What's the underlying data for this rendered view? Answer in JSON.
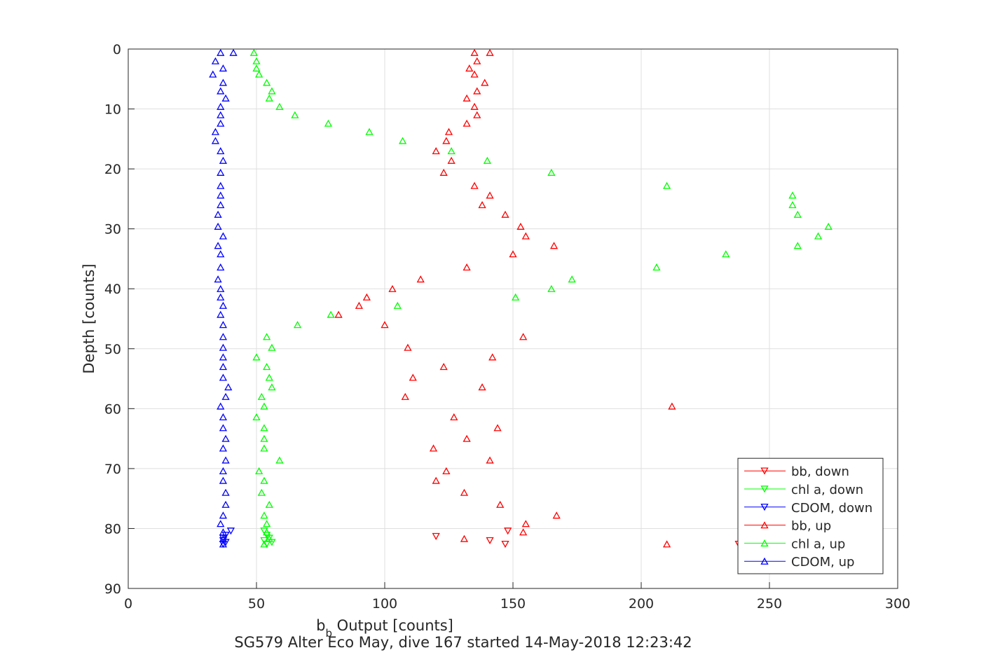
{
  "chart_data": {
    "type": "scatter",
    "title": "SG579 Alter Eco May, dive 167 started 14-May-2018 12:23:42",
    "xlabel": "b_b Output [counts]",
    "xlabel_main": "b",
    "xlabel_sub": "b",
    "xlabel_rest": " Output [counts]",
    "ylabel": "Depth [counts]",
    "xlim": [
      0,
      300
    ],
    "ylim": [
      0,
      90
    ],
    "y_reversed": true,
    "grid": true,
    "legend_position": "bottom-right",
    "xticks": [
      0,
      50,
      100,
      150,
      200,
      250,
      300
    ],
    "yticks": [
      0,
      10,
      20,
      30,
      40,
      50,
      60,
      70,
      80,
      90
    ],
    "series": [
      {
        "name": "bb, down",
        "color": "#ff0000",
        "marker": "triangle-down",
        "points": [
          [
            120,
            81.3
          ],
          [
            141,
            82.0
          ],
          [
            148,
            80.4
          ],
          [
            147,
            82.6
          ],
          [
            238,
            82.6
          ]
        ]
      },
      {
        "name": "chl a, down",
        "color": "#00ff00",
        "marker": "triangle-down",
        "points": [
          [
            53,
            80.4
          ],
          [
            54,
            81.1
          ],
          [
            55,
            81.6
          ],
          [
            53,
            82.0
          ],
          [
            56,
            82.3
          ],
          [
            54,
            82.6
          ]
        ]
      },
      {
        "name": "CDOM, down",
        "color": "#0000ff",
        "marker": "triangle-down",
        "points": [
          [
            40,
            80.4
          ],
          [
            38,
            81.1
          ],
          [
            37,
            81.6
          ],
          [
            37,
            82.0
          ],
          [
            38,
            82.3
          ],
          [
            37,
            82.6
          ]
        ]
      },
      {
        "name": "bb, up",
        "color": "#ff0000",
        "marker": "triangle-up",
        "points": [
          [
            135,
            0.6
          ],
          [
            141,
            0.6
          ],
          [
            136,
            2.0
          ],
          [
            133,
            3.2
          ],
          [
            135,
            4.2
          ],
          [
            139,
            5.6
          ],
          [
            136,
            7.0
          ],
          [
            132,
            8.2
          ],
          [
            135,
            9.6
          ],
          [
            136,
            11.0
          ],
          [
            132,
            12.4
          ],
          [
            125,
            13.8
          ],
          [
            124,
            15.3
          ],
          [
            120,
            17.0
          ],
          [
            126,
            18.6
          ],
          [
            123,
            20.6
          ],
          [
            135,
            22.8
          ],
          [
            141,
            24.4
          ],
          [
            138,
            26.0
          ],
          [
            147,
            27.6
          ],
          [
            153,
            29.6
          ],
          [
            155,
            31.2
          ],
          [
            166,
            32.8
          ],
          [
            150,
            34.2
          ],
          [
            132,
            36.4
          ],
          [
            114,
            38.4
          ],
          [
            103,
            40.0
          ],
          [
            93,
            41.4
          ],
          [
            90,
            42.8
          ],
          [
            82,
            44.3
          ],
          [
            100,
            46.0
          ],
          [
            154,
            48.0
          ],
          [
            109,
            49.8
          ],
          [
            142,
            51.4
          ],
          [
            123,
            53.0
          ],
          [
            111,
            54.8
          ],
          [
            138,
            56.4
          ],
          [
            108,
            58.0
          ],
          [
            212,
            59.6
          ],
          [
            127,
            61.4
          ],
          [
            144,
            63.2
          ],
          [
            132,
            65.0
          ],
          [
            119,
            66.6
          ],
          [
            141,
            68.6
          ],
          [
            124,
            70.4
          ],
          [
            120,
            72.0
          ],
          [
            131,
            74.0
          ],
          [
            145,
            76.0
          ],
          [
            167,
            77.8
          ],
          [
            155,
            79.2
          ],
          [
            154,
            80.6
          ],
          [
            131,
            81.7
          ],
          [
            210,
            82.6
          ]
        ]
      },
      {
        "name": "chl a, up",
        "color": "#00ff00",
        "marker": "triangle-up",
        "points": [
          [
            49,
            0.6
          ],
          [
            50,
            2.0
          ],
          [
            50,
            3.2
          ],
          [
            51,
            4.2
          ],
          [
            54,
            5.6
          ],
          [
            56,
            7.0
          ],
          [
            55,
            8.2
          ],
          [
            59,
            9.6
          ],
          [
            65,
            11.0
          ],
          [
            78,
            12.4
          ],
          [
            94,
            13.8
          ],
          [
            107,
            15.3
          ],
          [
            126,
            17.0
          ],
          [
            140,
            18.6
          ],
          [
            165,
            20.6
          ],
          [
            210,
            22.8
          ],
          [
            259,
            24.4
          ],
          [
            259,
            26.0
          ],
          [
            261,
            27.6
          ],
          [
            273,
            29.6
          ],
          [
            269,
            31.2
          ],
          [
            261,
            32.8
          ],
          [
            233,
            34.2
          ],
          [
            206,
            36.4
          ],
          [
            173,
            38.4
          ],
          [
            165,
            40.0
          ],
          [
            151,
            41.4
          ],
          [
            105,
            42.8
          ],
          [
            79,
            44.3
          ],
          [
            66,
            46.0
          ],
          [
            54,
            48.0
          ],
          [
            56,
            49.8
          ],
          [
            50,
            51.4
          ],
          [
            54,
            53.0
          ],
          [
            55,
            54.8
          ],
          [
            56,
            56.4
          ],
          [
            52,
            58.0
          ],
          [
            53,
            59.6
          ],
          [
            50,
            61.4
          ],
          [
            53,
            63.2
          ],
          [
            53,
            65.0
          ],
          [
            53,
            66.6
          ],
          [
            59,
            68.6
          ],
          [
            51,
            70.4
          ],
          [
            53,
            72.0
          ],
          [
            52,
            74.0
          ],
          [
            55,
            76.0
          ],
          [
            53,
            77.8
          ],
          [
            54,
            79.2
          ],
          [
            54,
            80.6
          ],
          [
            55,
            81.7
          ],
          [
            53,
            82.6
          ]
        ]
      },
      {
        "name": "CDOM, up",
        "color": "#0000ff",
        "marker": "triangle-up",
        "points": [
          [
            36,
            0.6
          ],
          [
            41,
            0.6
          ],
          [
            34,
            2.0
          ],
          [
            37,
            3.2
          ],
          [
            33,
            4.2
          ],
          [
            37,
            5.6
          ],
          [
            36,
            7.0
          ],
          [
            38,
            8.2
          ],
          [
            36,
            9.6
          ],
          [
            36,
            11.0
          ],
          [
            36,
            12.4
          ],
          [
            34,
            13.8
          ],
          [
            34,
            15.3
          ],
          [
            36,
            17.0
          ],
          [
            37,
            18.6
          ],
          [
            36,
            20.6
          ],
          [
            36,
            22.8
          ],
          [
            36,
            24.4
          ],
          [
            36,
            26.0
          ],
          [
            35,
            27.6
          ],
          [
            35,
            29.6
          ],
          [
            37,
            31.2
          ],
          [
            35,
            32.8
          ],
          [
            36,
            34.2
          ],
          [
            36,
            36.4
          ],
          [
            35,
            38.4
          ],
          [
            36,
            40.0
          ],
          [
            36,
            41.4
          ],
          [
            37,
            42.8
          ],
          [
            36,
            44.3
          ],
          [
            37,
            46.0
          ],
          [
            37,
            48.0
          ],
          [
            37,
            49.8
          ],
          [
            37,
            51.4
          ],
          [
            37,
            53.0
          ],
          [
            37,
            54.8
          ],
          [
            39,
            56.4
          ],
          [
            38,
            58.0
          ],
          [
            36,
            59.6
          ],
          [
            37,
            61.4
          ],
          [
            37,
            63.2
          ],
          [
            38,
            65.0
          ],
          [
            37,
            66.6
          ],
          [
            38,
            68.6
          ],
          [
            37,
            70.4
          ],
          [
            37,
            72.0
          ],
          [
            38,
            74.0
          ],
          [
            38,
            76.0
          ],
          [
            37,
            77.8
          ],
          [
            36,
            79.2
          ],
          [
            37,
            80.6
          ],
          [
            37,
            81.7
          ],
          [
            37,
            82.6
          ]
        ]
      }
    ]
  }
}
